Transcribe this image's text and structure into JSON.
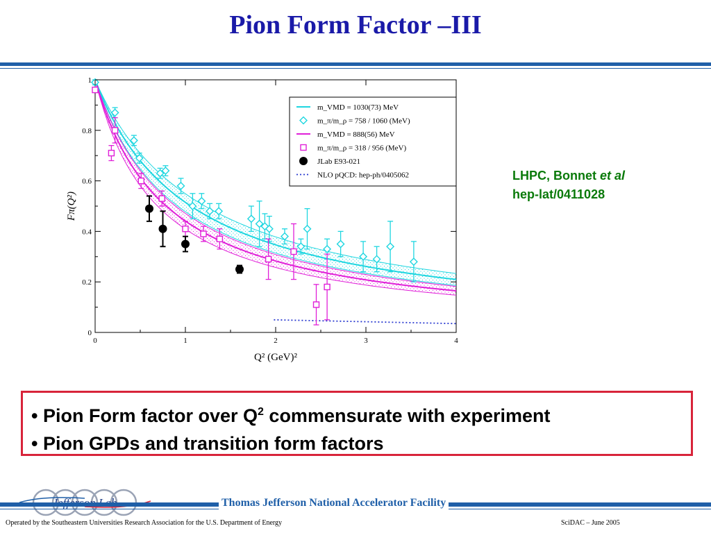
{
  "slide": {
    "title": "Pion Form Factor –III",
    "reference_line1": "LHPC, Bonnet ",
    "reference_italic": "et al",
    "reference_line2": "hep-lat/0411028",
    "bullets": [
      {
        "prefix": "• Pion Form factor over Q",
        "sup": "2",
        "suffix": " commensurate with experiment"
      },
      {
        "prefix": "• Pion GPDs and transition form factors",
        "sup": "",
        "suffix": ""
      }
    ],
    "footer": {
      "lab_name": "Thomas Jefferson National Accelerator Facility",
      "logo_text": "Jefferson Lab",
      "left_note": "Operated by the Southeastern Universities Research Association for the U.S. Department of  Energy",
      "right_note": "SciDAC – June  2005"
    }
  },
  "chart_data": {
    "type": "scatter",
    "xlabel": "Q² (GeV)²",
    "ylabel": "Fπ(Q²)",
    "xlim": [
      0,
      4
    ],
    "ylim": [
      0,
      1
    ],
    "xticks": [
      "0",
      "1",
      "2",
      "3",
      "4"
    ],
    "yticks": [
      "0",
      "0.2",
      "0.4",
      "0.6",
      "0.8",
      "1"
    ],
    "legend_position": "top-right",
    "colors": {
      "cyan": "#1ed6e0",
      "magenta": "#e020d8",
      "black": "#000000",
      "blue": "#2a3ad0"
    },
    "series": [
      {
        "name": "m_VMD = 1030(73) MeV",
        "kind": "band-line",
        "color": "#1ed6e0",
        "mass_gev": 1.03,
        "band": [
          0.957,
          1.103
        ]
      },
      {
        "name": "m_π/m_ρ = 758 / 1060 (MeV)",
        "kind": "points",
        "marker": "diamond",
        "color": "#1ed6e0",
        "points": [
          {
            "x": 0.0,
            "y": 0.99,
            "err": 0.01
          },
          {
            "x": 0.22,
            "y": 0.87,
            "err": 0.02
          },
          {
            "x": 0.43,
            "y": 0.76,
            "err": 0.02
          },
          {
            "x": 0.49,
            "y": 0.69,
            "err": 0.02
          },
          {
            "x": 0.72,
            "y": 0.63,
            "err": 0.02
          },
          {
            "x": 0.78,
            "y": 0.64,
            "err": 0.02
          },
          {
            "x": 0.95,
            "y": 0.58,
            "err": 0.03
          },
          {
            "x": 1.08,
            "y": 0.5,
            "err": 0.05
          },
          {
            "x": 1.18,
            "y": 0.52,
            "err": 0.03
          },
          {
            "x": 1.27,
            "y": 0.48,
            "err": 0.03
          },
          {
            "x": 1.37,
            "y": 0.48,
            "err": 0.03
          },
          {
            "x": 1.73,
            "y": 0.45,
            "err": 0.05
          },
          {
            "x": 1.82,
            "y": 0.43,
            "err": 0.09
          },
          {
            "x": 1.88,
            "y": 0.42,
            "err": 0.05
          },
          {
            "x": 1.93,
            "y": 0.41,
            "err": 0.05
          },
          {
            "x": 2.1,
            "y": 0.38,
            "err": 0.03
          },
          {
            "x": 2.28,
            "y": 0.34,
            "err": 0.03
          },
          {
            "x": 2.35,
            "y": 0.41,
            "err": 0.08
          },
          {
            "x": 2.57,
            "y": 0.33,
            "err": 0.04
          },
          {
            "x": 2.72,
            "y": 0.35,
            "err": 0.05
          },
          {
            "x": 2.97,
            "y": 0.3,
            "err": 0.06
          },
          {
            "x": 3.12,
            "y": 0.29,
            "err": 0.05
          },
          {
            "x": 3.27,
            "y": 0.34,
            "err": 0.1
          },
          {
            "x": 3.53,
            "y": 0.28,
            "err": 0.08
          }
        ]
      },
      {
        "name": "m_VMD = 888(56) MeV",
        "kind": "band-line",
        "color": "#e020d8",
        "mass_gev": 0.888,
        "band": [
          0.832,
          0.944
        ]
      },
      {
        "name": "m_π/m_ρ = 318 / 956 (MeV)",
        "kind": "points",
        "marker": "square",
        "color": "#e020d8",
        "points": [
          {
            "x": 0.0,
            "y": 0.96,
            "err": 0.01
          },
          {
            "x": 0.18,
            "y": 0.71,
            "err": 0.03
          },
          {
            "x": 0.22,
            "y": 0.8,
            "err": 0.05
          },
          {
            "x": 0.51,
            "y": 0.6,
            "err": 0.03
          },
          {
            "x": 0.74,
            "y": 0.53,
            "err": 0.03
          },
          {
            "x": 1.0,
            "y": 0.41,
            "err": 0.03
          },
          {
            "x": 1.2,
            "y": 0.39,
            "err": 0.03
          },
          {
            "x": 1.38,
            "y": 0.37,
            "err": 0.04
          },
          {
            "x": 1.92,
            "y": 0.29,
            "err": 0.08
          },
          {
            "x": 2.2,
            "y": 0.32,
            "err": 0.11
          },
          {
            "x": 2.45,
            "y": 0.11,
            "err": 0.08
          },
          {
            "x": 2.57,
            "y": 0.18,
            "err": 0.13
          }
        ]
      },
      {
        "name": "JLab E93-021",
        "kind": "points",
        "marker": "circle",
        "color": "#000000",
        "points": [
          {
            "x": 0.6,
            "y": 0.49,
            "err": 0.05
          },
          {
            "x": 0.75,
            "y": 0.41,
            "err": 0.07
          },
          {
            "x": 1.0,
            "y": 0.35,
            "err": 0.03
          },
          {
            "x": 1.6,
            "y": 0.25,
            "err": 0.015
          }
        ]
      },
      {
        "name": "NLO pQCD: hep-ph/0405062",
        "kind": "dotted-line",
        "color": "#2a3ad0",
        "points": [
          {
            "x": 1.98,
            "y": 0.05
          },
          {
            "x": 4.0,
            "y": 0.035
          }
        ]
      }
    ]
  }
}
